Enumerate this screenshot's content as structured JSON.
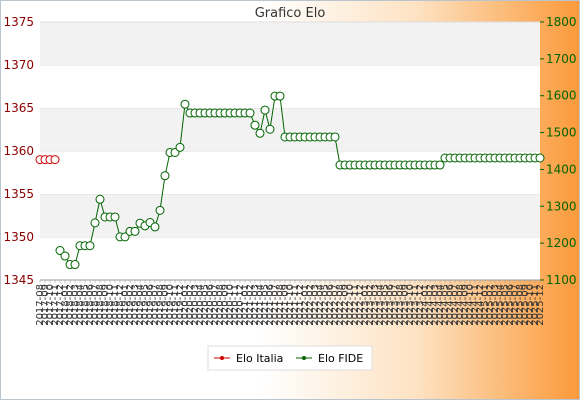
{
  "chart_data": {
    "type": "line",
    "title": "Grafico Elo",
    "y_left": {
      "min": 1345,
      "max": 1375,
      "ticks": [
        "1345",
        "1350",
        "1355",
        "1360",
        "1365",
        "1370",
        "1375"
      ]
    },
    "y_right": {
      "min": 1100,
      "max": 1800,
      "ticks": [
        "1100",
        "1200",
        "1300",
        "1400",
        "1500",
        "1600",
        "1700",
        "1800"
      ]
    },
    "x_ticks": [
      "2017-08",
      "2017-09",
      "2017-10",
      "2017-11",
      "2017-12",
      "2018-01",
      "2018-02",
      "2018-03",
      "2018-04",
      "2018-05",
      "2018-06",
      "2018-07",
      "2018-08",
      "2018-09",
      "2018-10",
      "2018-11",
      "2018-12",
      "2019-01",
      "2019-02",
      "2019-03",
      "2019-04",
      "2019-05",
      "2019-06",
      "2019-07",
      "2019-08",
      "2019-09",
      "2019-10",
      "2019-11",
      "2019-12",
      "2020-01",
      "2020-02",
      "2020-03",
      "2020-04",
      "2020-05",
      "2020-06",
      "2020-07",
      "2020-08",
      "2020-09",
      "2020-10",
      "2020-11",
      "2020-12",
      "2021-01",
      "2021-02",
      "2021-03",
      "2021-04",
      "2021-05",
      "2021-06",
      "2021-07",
      "2021-08",
      "2021-09",
      "2021-10",
      "2021-11",
      "2021-12",
      "2022-01",
      "2022-02",
      "2022-03",
      "2022-04",
      "2022-05",
      "2022-06",
      "2022-07",
      "2022-08",
      "2022-09",
      "2022-10",
      "2022-11",
      "2022-12",
      "2023-01",
      "2023-02",
      "2023-03",
      "2023-04",
      "2023-05",
      "2023-06",
      "2023-07",
      "2023-08",
      "2023-09",
      "2023-10",
      "2023-11",
      "2023-12",
      "2024-01",
      "2024-02",
      "2024-03",
      "2024-04",
      "2024-05",
      "2024-06",
      "2024-07",
      "2024-08",
      "2024-09",
      "2024-10",
      "2024-11",
      "2024-12",
      "2025-01",
      "2025-02",
      "2025-03",
      "2025-04",
      "2025-05",
      "2025-06",
      "2025-07",
      "2025-08",
      "2025-09",
      "2025-10",
      "2025-11",
      "2025-12"
    ],
    "series": [
      {
        "name": "Elo Italia",
        "axis": "left",
        "color": "#cc0000",
        "points": [
          [
            0,
            1359
          ],
          [
            1,
            1359
          ],
          [
            2,
            1359
          ],
          [
            3,
            1359
          ]
        ]
      },
      {
        "name": "Elo FIDE",
        "axis": "right",
        "color": "#006400",
        "points": [
          [
            4,
            1180
          ],
          [
            5,
            1165
          ],
          [
            6,
            1142
          ],
          [
            7,
            1142
          ],
          [
            8,
            1193
          ],
          [
            9,
            1193
          ],
          [
            10,
            1193
          ],
          [
            11,
            1255
          ],
          [
            12,
            1319
          ],
          [
            13,
            1271
          ],
          [
            14,
            1271
          ],
          [
            15,
            1271
          ],
          [
            16,
            1217
          ],
          [
            17,
            1217
          ],
          [
            18,
            1232
          ],
          [
            19,
            1232
          ],
          [
            20,
            1254
          ],
          [
            21,
            1247
          ],
          [
            22,
            1256
          ],
          [
            23,
            1244
          ],
          [
            24,
            1289
          ],
          [
            25,
            1383
          ],
          [
            26,
            1446
          ],
          [
            27,
            1446
          ],
          [
            28,
            1460
          ],
          [
            29,
            1577
          ],
          [
            30,
            1553
          ],
          [
            31,
            1553
          ],
          [
            32,
            1553
          ],
          [
            33,
            1553
          ],
          [
            34,
            1553
          ],
          [
            35,
            1553
          ],
          [
            36,
            1553
          ],
          [
            37,
            1553
          ],
          [
            38,
            1553
          ],
          [
            39,
            1553
          ],
          [
            40,
            1553
          ],
          [
            41,
            1553
          ],
          [
            42,
            1553
          ],
          [
            43,
            1520
          ],
          [
            44,
            1498
          ],
          [
            45,
            1561
          ],
          [
            46,
            1509
          ],
          [
            47,
            1599
          ],
          [
            48,
            1599
          ],
          [
            49,
            1488
          ],
          [
            50,
            1488
          ],
          [
            51,
            1488
          ],
          [
            52,
            1488
          ],
          [
            53,
            1488
          ],
          [
            54,
            1488
          ],
          [
            55,
            1488
          ],
          [
            56,
            1488
          ],
          [
            57,
            1488
          ],
          [
            58,
            1488
          ],
          [
            59,
            1488
          ],
          [
            60,
            1412
          ],
          [
            61,
            1412
          ],
          [
            62,
            1412
          ],
          [
            63,
            1412
          ],
          [
            64,
            1412
          ],
          [
            65,
            1412
          ],
          [
            66,
            1412
          ],
          [
            67,
            1412
          ],
          [
            68,
            1412
          ],
          [
            69,
            1412
          ],
          [
            70,
            1412
          ],
          [
            71,
            1412
          ],
          [
            72,
            1412
          ],
          [
            73,
            1412
          ],
          [
            74,
            1412
          ],
          [
            75,
            1412
          ],
          [
            76,
            1412
          ],
          [
            77,
            1412
          ],
          [
            78,
            1412
          ],
          [
            79,
            1412
          ],
          [
            80,
            1412
          ],
          [
            81,
            1431
          ],
          [
            82,
            1431
          ],
          [
            83,
            1431
          ],
          [
            84,
            1431
          ],
          [
            85,
            1431
          ],
          [
            86,
            1431
          ],
          [
            87,
            1431
          ],
          [
            88,
            1431
          ],
          [
            89,
            1431
          ],
          [
            90,
            1431
          ],
          [
            91,
            1431
          ],
          [
            92,
            1431
          ],
          [
            93,
            1431
          ],
          [
            94,
            1431
          ],
          [
            95,
            1431
          ],
          [
            96,
            1431
          ],
          [
            97,
            1431
          ],
          [
            98,
            1431
          ],
          [
            99,
            1431
          ],
          [
            100,
            1431
          ]
        ]
      }
    ],
    "grid": true,
    "legend_position": "bottom-center"
  }
}
